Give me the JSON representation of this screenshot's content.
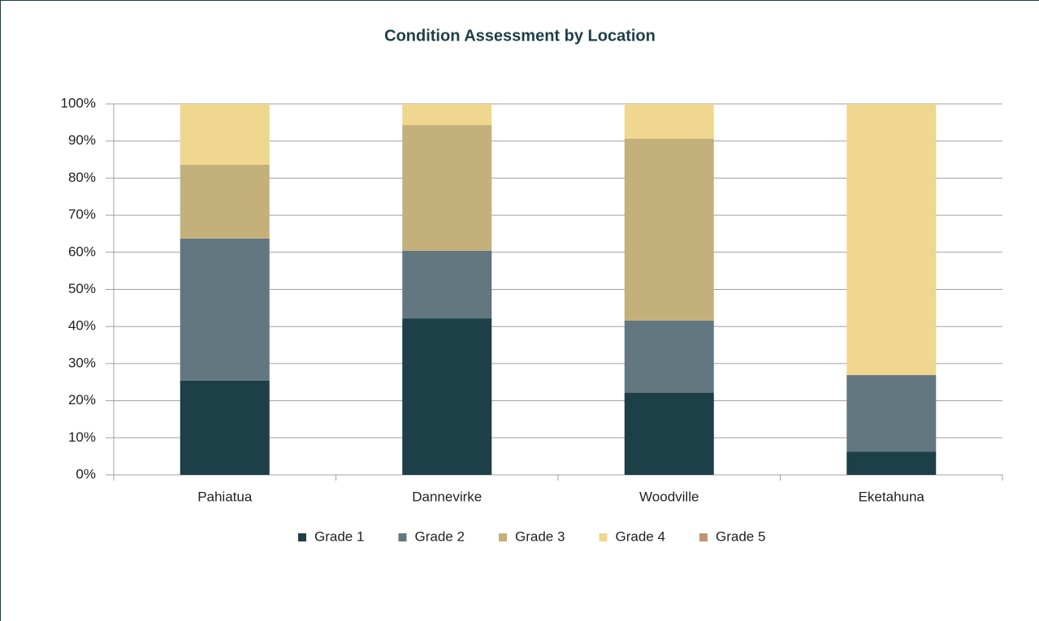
{
  "chart_data": {
    "type": "stacked_bar",
    "title": "Condition Assessment by Location",
    "categories": [
      "Pahiatua",
      "Dannevirke",
      "Woodville",
      "Eketahuna"
    ],
    "series": [
      {
        "name": "Grade 1",
        "color": "#1d3f47",
        "values": [
          25.4,
          42.2,
          22.1,
          6.3
        ]
      },
      {
        "name": "Grade 2",
        "color": "#627780",
        "values": [
          38.3,
          18.2,
          19.5,
          20.6
        ]
      },
      {
        "name": "Grade 3",
        "color": "#c3b07a",
        "values": [
          19.9,
          33.9,
          49.0,
          0
        ]
      },
      {
        "name": "Grade 4",
        "color": "#efd78f",
        "values": [
          16.4,
          5.7,
          9.4,
          73.1
        ]
      },
      {
        "name": "Grade 5",
        "color": "#c49373",
        "values": [
          0,
          0,
          0,
          0
        ]
      }
    ],
    "ylim": [
      0,
      100
    ],
    "yticks": [
      {
        "value": 0,
        "label": "0%"
      },
      {
        "value": 10,
        "label": "10%"
      },
      {
        "value": 20,
        "label": "20%"
      },
      {
        "value": 30,
        "label": "30%"
      },
      {
        "value": 40,
        "label": "40%"
      },
      {
        "value": 50,
        "label": "50%"
      },
      {
        "value": 60,
        "label": "60%"
      },
      {
        "value": 70,
        "label": "70%"
      },
      {
        "value": 80,
        "label": "80%"
      },
      {
        "value": 90,
        "label": "90%"
      },
      {
        "value": 100,
        "label": "100%"
      }
    ],
    "grid": true,
    "legend": "bottom"
  }
}
